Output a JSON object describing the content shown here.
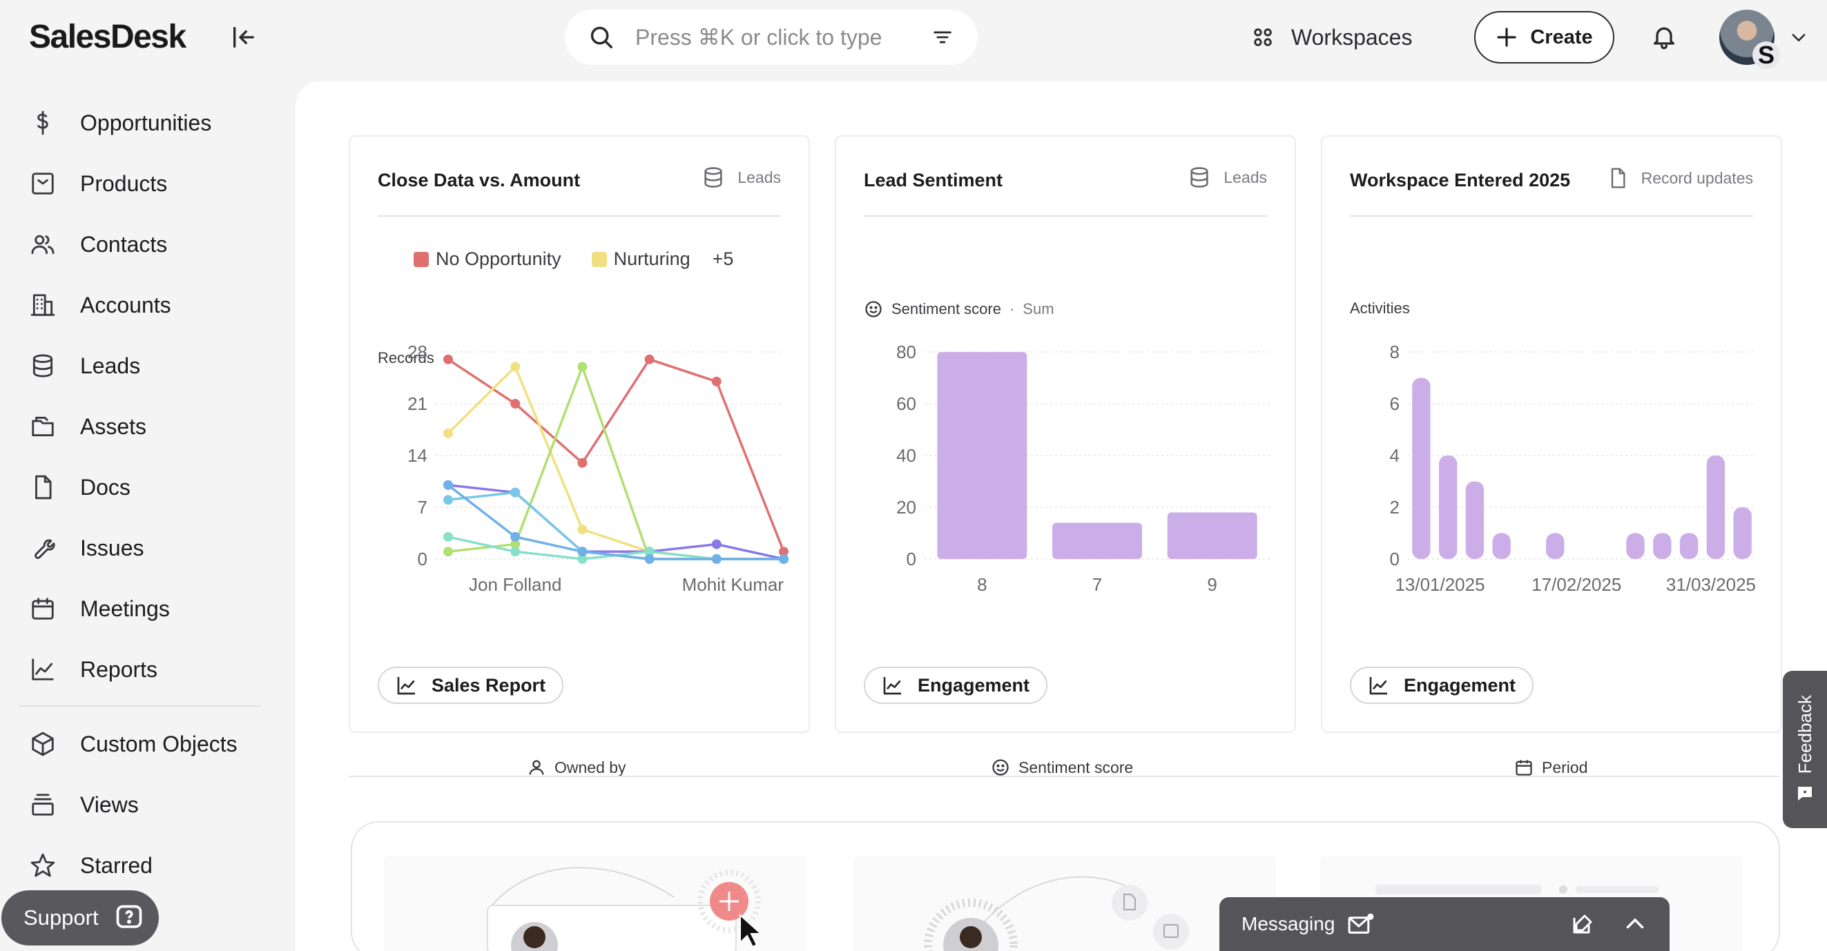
{
  "app": {
    "name": "SalesDesk"
  },
  "search": {
    "placeholder": "Press ⌘K or click to type"
  },
  "header": {
    "workspaces_label": "Workspaces",
    "create_label": "Create",
    "avatar_initial": "S"
  },
  "sidebar": {
    "items": [
      {
        "label": "Opportunities",
        "icon": "dollar-icon"
      },
      {
        "label": "Products",
        "icon": "box-icon"
      },
      {
        "label": "Contacts",
        "icon": "users-icon"
      },
      {
        "label": "Accounts",
        "icon": "building-icon"
      },
      {
        "label": "Leads",
        "icon": "database-icon"
      },
      {
        "label": "Assets",
        "icon": "folder-icon"
      },
      {
        "label": "Docs",
        "icon": "document-icon"
      },
      {
        "label": "Issues",
        "icon": "wrench-icon"
      },
      {
        "label": "Meetings",
        "icon": "calendar-icon"
      },
      {
        "label": "Reports",
        "icon": "chart-line-icon"
      }
    ],
    "secondary": [
      {
        "label": "Custom Objects",
        "icon": "cube-icon"
      },
      {
        "label": "Views",
        "icon": "layers-icon"
      },
      {
        "label": "Starred",
        "icon": "star-icon"
      }
    ],
    "support_label": "Support"
  },
  "cards": [
    {
      "title": "Close Data vs. Amount",
      "source": "Leads",
      "legend": [
        {
          "label": "No Opportunity",
          "color": "#e07070"
        },
        {
          "label": "Nurturing",
          "color": "#f0e080"
        }
      ],
      "legend_more": "+5",
      "y_caption": "Records",
      "x_caption": "Owned by",
      "button": "Sales Report"
    },
    {
      "title": "Lead Sentiment",
      "source": "Leads",
      "metric": "Sentiment score",
      "aggregation": "Sum",
      "x_caption": "Sentiment score",
      "button": "Engagement"
    },
    {
      "title": "Workspace Entered 2025",
      "source": "Record updates",
      "y_caption": "Activities",
      "x_caption": "Period",
      "button": "Engagement"
    }
  ],
  "chart_data": [
    {
      "type": "line",
      "title": "Close Data vs. Amount",
      "ylabel": "Records",
      "xlabel": "Owned by",
      "ylim": [
        0,
        28
      ],
      "yticks": [
        0,
        7,
        14,
        21,
        28
      ],
      "xtick_labels": [
        "Jon Folland",
        "Mohit Kumar"
      ],
      "x_count": 6,
      "series": [
        {
          "name": "No Opportunity",
          "color": "#e07070",
          "values": [
            27,
            21,
            13,
            27,
            24,
            1
          ]
        },
        {
          "name": "Nurturing",
          "color": "#f0e080",
          "values": [
            17,
            26,
            4,
            1,
            0,
            0
          ]
        },
        {
          "color": "#b0e070",
          "values": [
            1,
            2,
            26,
            0,
            0,
            0
          ]
        },
        {
          "color": "#8a78e8",
          "values": [
            10,
            9,
            1,
            1,
            2,
            0
          ]
        },
        {
          "color": "#78c8e8",
          "values": [
            8,
            9,
            1,
            0,
            0,
            0
          ]
        },
        {
          "color": "#88e0c8",
          "values": [
            3,
            1,
            0,
            1,
            0,
            0
          ]
        },
        {
          "color": "#6fb0e8",
          "values": [
            10,
            3,
            1,
            0,
            0,
            0
          ]
        }
      ]
    },
    {
      "type": "bar",
      "xlabel": "Sentiment score",
      "ylim": [
        0,
        80
      ],
      "yticks": [
        0,
        20,
        40,
        60,
        80
      ],
      "categories": [
        "8",
        "7",
        "9"
      ],
      "values": [
        80,
        14,
        18
      ],
      "color": "#cbaee8"
    },
    {
      "type": "bar",
      "ylabel": "Activities",
      "xlabel": "Period",
      "ylim": [
        0,
        8
      ],
      "yticks": [
        0,
        2,
        4,
        6,
        8
      ],
      "xtick_labels": [
        "13/01/2025",
        "17/02/2025",
        "31/03/2025"
      ],
      "values": [
        7,
        4,
        3,
        1,
        0,
        1,
        0,
        0,
        1,
        1,
        1,
        4,
        2
      ],
      "color": "#cbaee8"
    }
  ],
  "feedback_label": "Feedback",
  "messaging_label": "Messaging"
}
